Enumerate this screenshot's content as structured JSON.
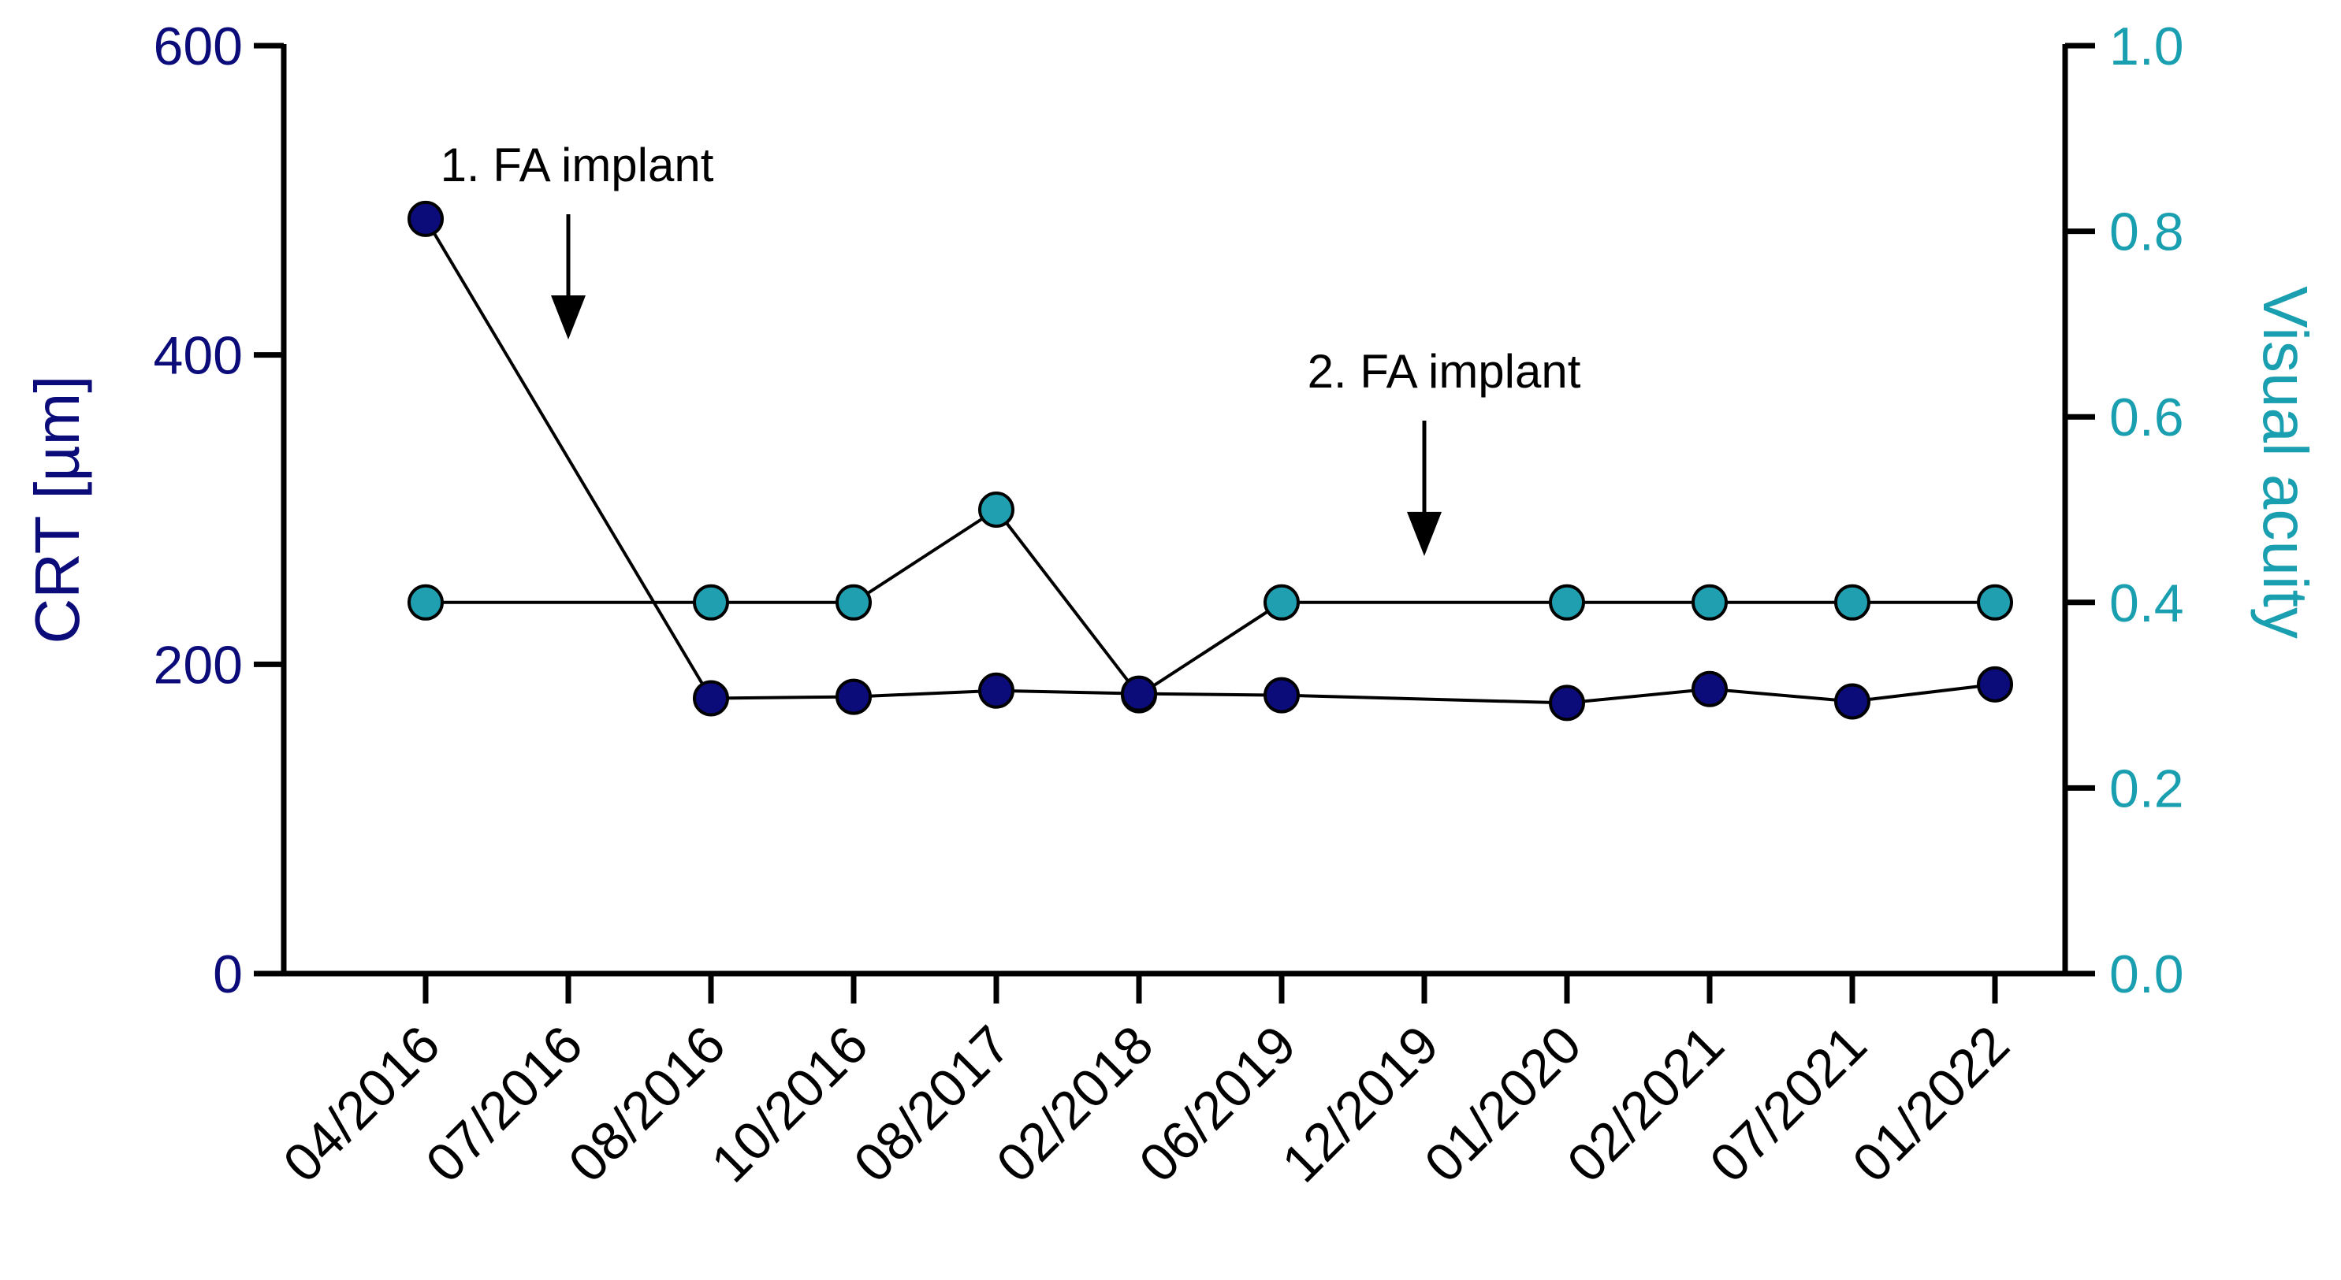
{
  "chart_data": {
    "type": "line",
    "categories": [
      "04/2016",
      "07/2016",
      "08/2016",
      "10/2016",
      "08/2017",
      "02/2018",
      "06/2019",
      "12/2019",
      "01/2020",
      "02/2021",
      "07/2021",
      "01/2022"
    ],
    "series": [
      {
        "name": "CRT [µm]",
        "axis": "left",
        "color": "#0b0b7a",
        "values": [
          488,
          null,
          178,
          179,
          183,
          181,
          180,
          null,
          175,
          184,
          176,
          187
        ]
      },
      {
        "name": "Visual acuity",
        "axis": "right",
        "color": "#1f9fb0",
        "values": [
          0.4,
          null,
          0.4,
          0.4,
          0.5,
          0.3,
          0.4,
          null,
          0.4,
          0.4,
          0.4,
          0.4
        ]
      }
    ],
    "y_left": {
      "label": "CRT [µm]",
      "range": [
        0,
        600
      ],
      "ticks": [
        0,
        200,
        400,
        600
      ],
      "tick_labels": [
        "0",
        "200",
        "400",
        "600"
      ],
      "color": "#0b0b7a"
    },
    "y_right": {
      "label": "Visual acuity",
      "range": [
        0,
        1
      ],
      "ticks": [
        0,
        0.2,
        0.4,
        0.6,
        0.8,
        1.0
      ],
      "tick_labels": [
        "0.0",
        "0.2",
        "0.4",
        "0.6",
        "0.8",
        "1.0"
      ],
      "color": "#1a9fb0"
    },
    "annotations": [
      {
        "text": "1. FA implant",
        "category": "07/2016",
        "arrow_tip_crt": 410
      },
      {
        "text": "2. FA implant",
        "category": "12/2019",
        "arrow_tip_crt": 270
      }
    ],
    "grid": false,
    "legend": "none"
  }
}
